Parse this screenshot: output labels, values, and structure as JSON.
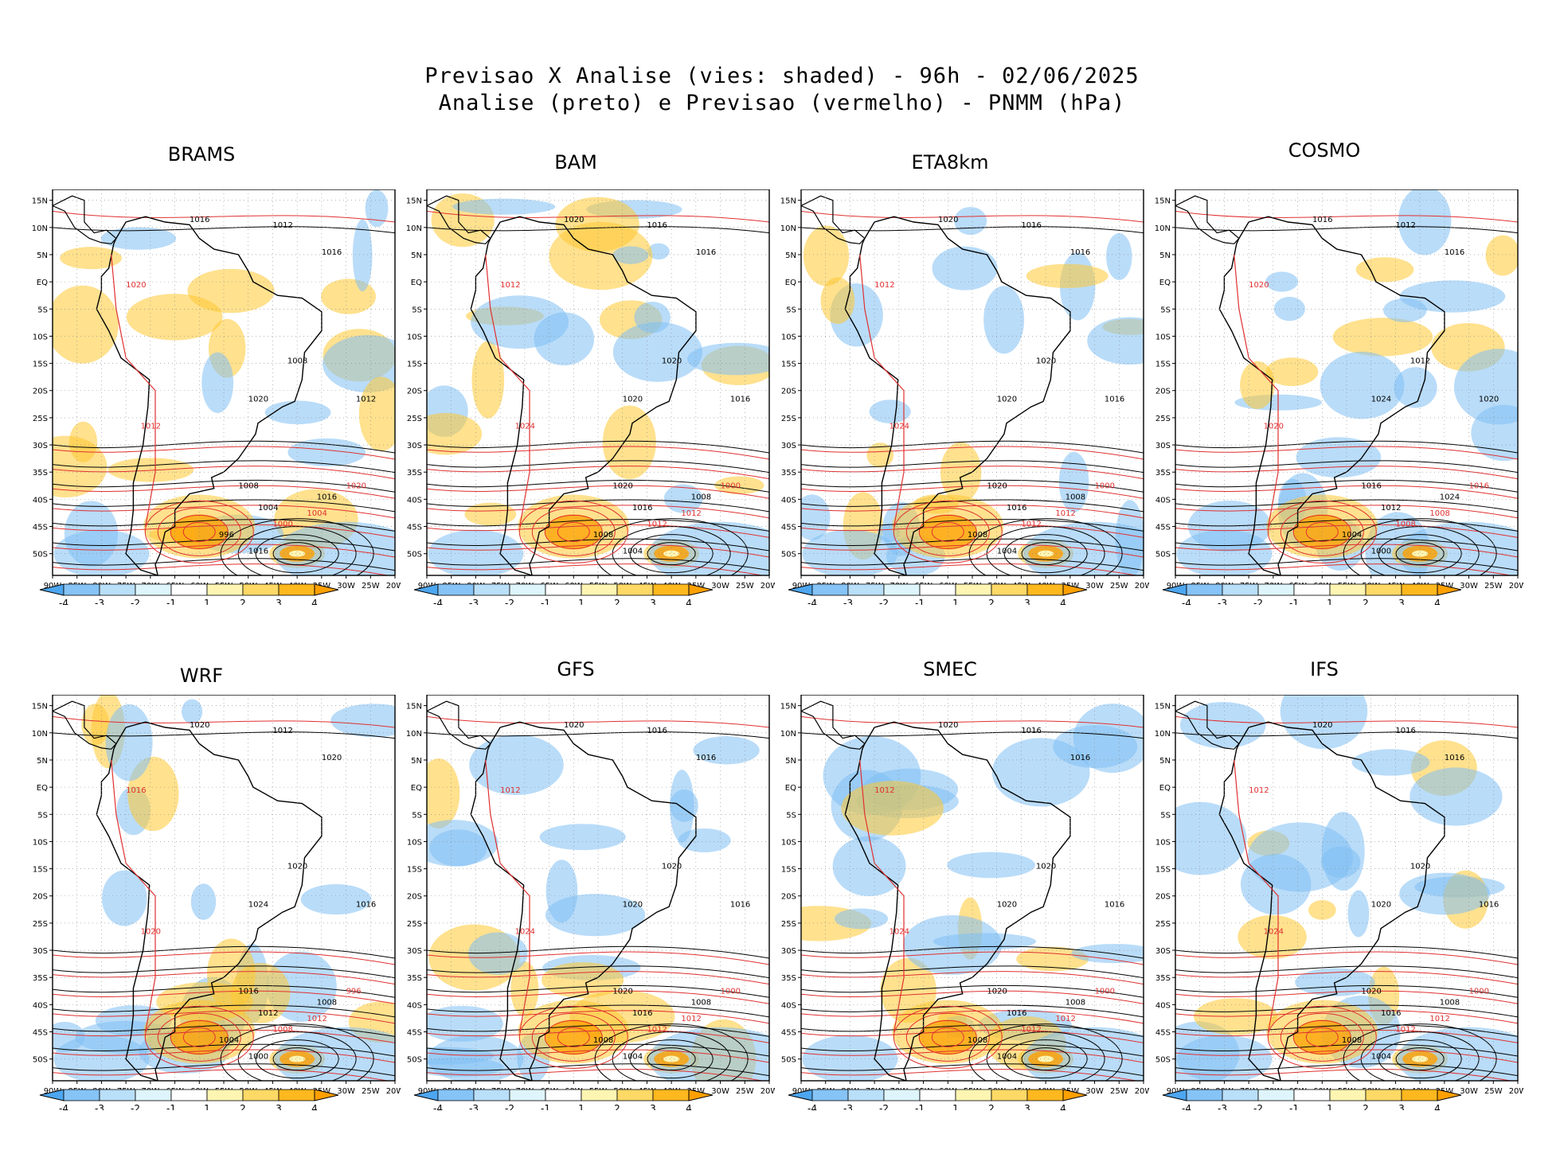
{
  "title_line1": "Previsao X Analise (vies: shaded) - 96h - 02/06/2025",
  "title_line2": "Analise (preto) e Previsao (vermelho) - PNMM (hPa)",
  "lat_labels": [
    "15N",
    "10N",
    "5N",
    "EQ",
    "5S",
    "10S",
    "15S",
    "20S",
    "25S",
    "30S",
    "35S",
    "40S",
    "45S",
    "50S"
  ],
  "lon_labels": [
    "90W",
    "85W",
    "80W",
    "75W",
    "70W",
    "65W",
    "60W",
    "55W",
    "50W",
    "45W",
    "40W",
    "35W",
    "30W",
    "25W",
    "20W"
  ],
  "colorbar": {
    "labels": [
      "-4",
      "-3",
      "-2",
      "-1",
      "1",
      "2",
      "3",
      "4"
    ],
    "colors": [
      "#4da6f0",
      "#86c3f6",
      "#b9dff9",
      "#def5fb",
      "#ffffff",
      "#fff5b3",
      "#ffd966",
      "#ffb81e",
      "#ffa000"
    ]
  },
  "colors": {
    "analysis": "#000000",
    "forecast": "#e03030",
    "neg": "#7fc0f4",
    "pos": "#ffc832",
    "land": "#ffffff"
  },
  "panels": [
    {
      "name": "BRAMS",
      "labels": [
        "1016",
        "1012",
        "1020",
        "1016",
        "1020",
        "1012",
        "1008",
        "1004",
        "1000",
        "996",
        "1016",
        "1020",
        "1012",
        "1008",
        "1004",
        "1016"
      ]
    },
    {
      "name": "BAM",
      "labels": [
        "1020",
        "1016",
        "1012",
        "1016",
        "1020",
        "1024",
        "1020",
        "1016",
        "1012",
        "1008",
        "1004",
        "1000",
        "1016",
        "1020",
        "1012",
        "1008"
      ]
    },
    {
      "name": "ETA8km",
      "labels": [
        "1020",
        "1016",
        "1012",
        "1016",
        "1020",
        "1024",
        "1020",
        "1016",
        "1012",
        "1008",
        "1004",
        "1000",
        "1016",
        "1020",
        "1012",
        "1008"
      ]
    },
    {
      "name": "COSMO",
      "labels": [
        "1016",
        "1012",
        "1020",
        "1016",
        "1024",
        "1020",
        "1016",
        "1012",
        "1008",
        "1004",
        "1000",
        "1016",
        "1020",
        "1012",
        "1008",
        "1024"
      ]
    },
    {
      "name": "WRF",
      "labels": [
        "1020",
        "1012",
        "1016",
        "1020",
        "1024",
        "1020",
        "1016",
        "1012",
        "1008",
        "1004",
        "1000",
        "996",
        "1016",
        "1020",
        "1012",
        "1008"
      ]
    },
    {
      "name": "GFS",
      "labels": [
        "1020",
        "1016",
        "1012",
        "1016",
        "1020",
        "1024",
        "1020",
        "1016",
        "1012",
        "1008",
        "1004",
        "1000",
        "1016",
        "1020",
        "1012",
        "1008"
      ]
    },
    {
      "name": "SMEC",
      "labels": [
        "1020",
        "1016",
        "1012",
        "1016",
        "1020",
        "1024",
        "1020",
        "1016",
        "1012",
        "1008",
        "1004",
        "1000",
        "1016",
        "1020",
        "1012",
        "1008"
      ]
    },
    {
      "name": "IFS",
      "labels": [
        "1020",
        "1016",
        "1012",
        "1016",
        "1020",
        "1024",
        "1020",
        "1016",
        "1012",
        "1008",
        "1004",
        "1000",
        "1016",
        "1020",
        "1012",
        "1008"
      ]
    }
  ]
}
